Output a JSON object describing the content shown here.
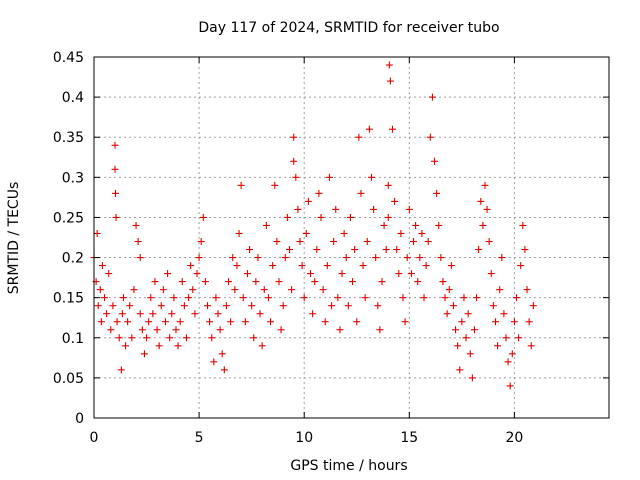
{
  "chart_data": {
    "type": "scatter",
    "title": "Day 117 of 2024, SRMTID for receiver tubo",
    "xlabel": "GPS time / hours",
    "ylabel": "SRMTID / TECUs",
    "xlim": [
      0,
      24.5
    ],
    "ylim": [
      0,
      0.45
    ],
    "xticks": [
      0,
      5,
      10,
      15,
      20
    ],
    "xtick_labels": [
      "0",
      "5",
      "10",
      "15",
      "20"
    ],
    "yticks": [
      0,
      0.05,
      0.1,
      0.15,
      0.2,
      0.25,
      0.3,
      0.35,
      0.4,
      0.45
    ],
    "ytick_labels": [
      "0",
      "0.05",
      "0.1",
      "0.15",
      "0.2",
      "0.25",
      "0.3",
      "0.35",
      "0.4",
      "0.45"
    ],
    "grid": true,
    "marker": "+",
    "color": "#e00000",
    "series": [
      {
        "name": "SRMTID",
        "x": [
          0.0,
          0.1,
          0.15,
          0.2,
          0.3,
          0.35,
          0.4,
          0.5,
          0.6,
          0.7,
          0.8,
          0.9,
          1.0,
          1.0,
          1.02,
          1.05,
          1.1,
          1.2,
          1.3,
          1.35,
          1.4,
          1.5,
          1.6,
          1.7,
          1.8,
          1.9,
          2.0,
          2.1,
          2.2,
          2.2,
          2.3,
          2.4,
          2.5,
          2.6,
          2.7,
          2.8,
          2.9,
          3.0,
          3.1,
          3.2,
          3.3,
          3.4,
          3.5,
          3.6,
          3.7,
          3.8,
          3.9,
          4.0,
          4.1,
          4.2,
          4.3,
          4.4,
          4.5,
          4.6,
          4.7,
          4.8,
          4.9,
          5.0,
          5.1,
          5.2,
          5.3,
          5.4,
          5.5,
          5.6,
          5.7,
          5.8,
          5.9,
          6.0,
          6.1,
          6.2,
          6.3,
          6.4,
          6.5,
          6.6,
          6.7,
          6.8,
          6.9,
          7.0,
          7.1,
          7.2,
          7.3,
          7.4,
          7.5,
          7.6,
          7.7,
          7.8,
          7.9,
          8.0,
          8.1,
          8.2,
          8.3,
          8.4,
          8.5,
          8.6,
          8.7,
          8.8,
          8.9,
          9.0,
          9.1,
          9.2,
          9.3,
          9.4,
          9.5,
          9.5,
          9.6,
          9.7,
          9.8,
          9.9,
          10.0,
          10.1,
          10.2,
          10.3,
          10.4,
          10.5,
          10.6,
          10.7,
          10.8,
          10.9,
          11.0,
          11.1,
          11.2,
          11.3,
          11.4,
          11.5,
          11.6,
          11.7,
          11.8,
          11.9,
          12.0,
          12.1,
          12.2,
          12.3,
          12.4,
          12.5,
          12.6,
          12.7,
          12.8,
          12.9,
          13.0,
          13.1,
          13.2,
          13.3,
          13.4,
          13.5,
          13.6,
          13.7,
          13.8,
          13.9,
          14.0,
          14.0,
          14.05,
          14.1,
          14.2,
          14.3,
          14.4,
          14.5,
          14.6,
          14.7,
          14.8,
          14.9,
          15.0,
          15.1,
          15.2,
          15.3,
          15.4,
          15.5,
          15.6,
          15.7,
          15.8,
          15.9,
          16.0,
          16.1,
          16.2,
          16.3,
          16.4,
          16.5,
          16.6,
          16.7,
          16.8,
          16.9,
          17.0,
          17.1,
          17.2,
          17.3,
          17.4,
          17.5,
          17.6,
          17.7,
          17.8,
          17.9,
          18.0,
          18.1,
          18.2,
          18.3,
          18.4,
          18.5,
          18.6,
          18.7,
          18.8,
          18.9,
          19.0,
          19.1,
          19.2,
          19.3,
          19.4,
          19.5,
          19.6,
          19.7,
          19.8,
          19.9,
          20.0,
          20.1,
          20.2,
          20.3,
          20.4,
          20.5,
          20.6,
          20.7,
          20.8,
          20.9
        ],
        "y": [
          0.2,
          0.17,
          0.23,
          0.14,
          0.16,
          0.12,
          0.19,
          0.15,
          0.13,
          0.18,
          0.11,
          0.14,
          0.34,
          0.31,
          0.28,
          0.25,
          0.12,
          0.1,
          0.06,
          0.13,
          0.15,
          0.09,
          0.12,
          0.14,
          0.1,
          0.16,
          0.24,
          0.22,
          0.2,
          0.13,
          0.11,
          0.08,
          0.1,
          0.12,
          0.15,
          0.13,
          0.17,
          0.11,
          0.09,
          0.14,
          0.16,
          0.12,
          0.18,
          0.1,
          0.13,
          0.15,
          0.11,
          0.09,
          0.12,
          0.17,
          0.14,
          0.1,
          0.15,
          0.19,
          0.16,
          0.13,
          0.18,
          0.2,
          0.22,
          0.25,
          0.17,
          0.14,
          0.12,
          0.1,
          0.07,
          0.15,
          0.13,
          0.11,
          0.08,
          0.06,
          0.14,
          0.17,
          0.12,
          0.2,
          0.16,
          0.19,
          0.23,
          0.29,
          0.15,
          0.12,
          0.18,
          0.21,
          0.14,
          0.1,
          0.17,
          0.2,
          0.13,
          0.09,
          0.16,
          0.24,
          0.15,
          0.12,
          0.19,
          0.29,
          0.22,
          0.17,
          0.11,
          0.14,
          0.2,
          0.25,
          0.21,
          0.16,
          0.32,
          0.35,
          0.3,
          0.26,
          0.22,
          0.19,
          0.15,
          0.23,
          0.27,
          0.18,
          0.13,
          0.17,
          0.21,
          0.28,
          0.25,
          0.16,
          0.12,
          0.19,
          0.3,
          0.14,
          0.22,
          0.26,
          0.15,
          0.11,
          0.18,
          0.23,
          0.2,
          0.14,
          0.25,
          0.17,
          0.21,
          0.12,
          0.35,
          0.28,
          0.19,
          0.15,
          0.22,
          0.36,
          0.3,
          0.26,
          0.2,
          0.14,
          0.11,
          0.17,
          0.24,
          0.21,
          0.29,
          0.25,
          0.44,
          0.42,
          0.36,
          0.27,
          0.21,
          0.18,
          0.23,
          0.15,
          0.12,
          0.2,
          0.26,
          0.18,
          0.22,
          0.24,
          0.17,
          0.2,
          0.23,
          0.15,
          0.19,
          0.22,
          0.35,
          0.4,
          0.32,
          0.28,
          0.24,
          0.2,
          0.17,
          0.15,
          0.13,
          0.16,
          0.19,
          0.14,
          0.11,
          0.09,
          0.06,
          0.12,
          0.15,
          0.1,
          0.13,
          0.08,
          0.05,
          0.11,
          0.15,
          0.21,
          0.27,
          0.24,
          0.29,
          0.26,
          0.22,
          0.18,
          0.14,
          0.12,
          0.09,
          0.16,
          0.2,
          0.13,
          0.1,
          0.07,
          0.04,
          0.08,
          0.12,
          0.15,
          0.1,
          0.19,
          0.24,
          0.21,
          0.16,
          0.12,
          0.09,
          0.14
        ]
      }
    ]
  }
}
